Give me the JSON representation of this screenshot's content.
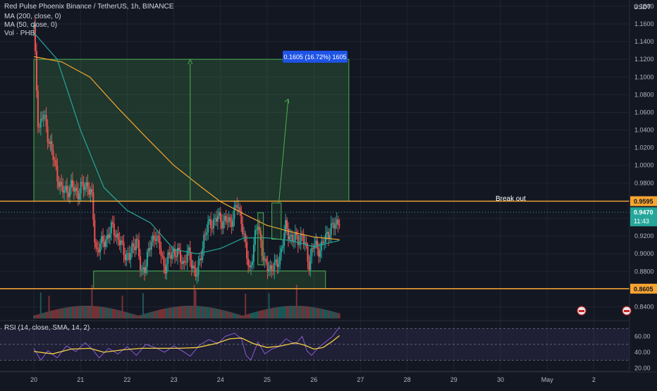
{
  "header": {
    "title": "Red Pulse Phoenix Binance / TetherUS, 1h, BINANCE",
    "ma200": "MA (200, close, 0)",
    "ma50": "MA (50, close, 0)",
    "vol": "Vol · PHB",
    "currency": "USDT"
  },
  "annotations": {
    "measure": "0.1605 (16.72%) 1605",
    "breakout": "Break out"
  },
  "price_badges": {
    "upper_line": "0.9595",
    "last_price": "0.9470",
    "countdown": "11:43",
    "lower_line": "0.8605"
  },
  "rsi_panel": {
    "label": "RSI (14, close, SMA, 14, 2)",
    "ticks": [
      "60.00",
      "40.00",
      "20.00"
    ]
  },
  "colors": {
    "up": "#26a69a",
    "down": "#ef5350",
    "ma200": "#f7a531",
    "ma50": "#26a69a",
    "zone": "#4caf50",
    "rsi": "#7e57c2",
    "rsi_ma": "#f5d142",
    "badge": "#1e53e5"
  },
  "chart_data": {
    "type": "candlestick",
    "x_ticks": [
      "20",
      "21",
      "22",
      "23",
      "24",
      "25",
      "26",
      "27",
      "28",
      "29",
      "30",
      "May",
      "2"
    ],
    "y_ticks": [
      "1.1800",
      "1.1600",
      "1.1400",
      "1.1200",
      "1.1000",
      "1.0800",
      "1.0600",
      "1.0400",
      "1.0200",
      "1.0000",
      "0.9800",
      "0.9600",
      "0.9400",
      "0.9200",
      "0.9000",
      "0.8800",
      "0.8600",
      "0.8400"
    ],
    "ylim": [
      0.834,
      1.1855
    ],
    "price_path": [
      [
        0,
        1.155
      ],
      [
        0.1,
        1.04
      ],
      [
        0.2,
        1.058
      ],
      [
        0.3,
        1.035
      ],
      [
        0.45,
        1.0
      ],
      [
        0.6,
        0.97
      ],
      [
        0.8,
        0.975
      ],
      [
        0.95,
        0.97
      ],
      [
        1.15,
        0.98
      ],
      [
        1.25,
        0.96
      ],
      [
        1.32,
        0.905
      ],
      [
        1.45,
        0.91
      ],
      [
        1.7,
        0.93
      ],
      [
        1.9,
        0.905
      ],
      [
        2.05,
        0.895
      ],
      [
        2.2,
        0.92
      ],
      [
        2.3,
        0.875
      ],
      [
        2.45,
        0.9
      ],
      [
        2.6,
        0.925
      ],
      [
        2.8,
        0.885
      ],
      [
        3.0,
        0.905
      ],
      [
        3.2,
        0.89
      ],
      [
        3.3,
        0.9
      ],
      [
        3.5,
        0.875
      ],
      [
        3.65,
        0.92
      ],
      [
        3.78,
        0.935
      ],
      [
        3.95,
        0.94
      ],
      [
        4.2,
        0.935
      ],
      [
        4.35,
        0.955
      ],
      [
        4.45,
        0.94
      ],
      [
        4.55,
        0.9
      ],
      [
        4.62,
        0.88
      ],
      [
        4.7,
        0.905
      ],
      [
        4.8,
        0.935
      ],
      [
        4.95,
        0.885
      ],
      [
        5.2,
        0.885
      ],
      [
        5.3,
        0.905
      ],
      [
        5.4,
        0.93
      ],
      [
        5.55,
        0.915
      ],
      [
        5.75,
        0.92
      ],
      [
        5.85,
        0.9
      ],
      [
        5.9,
        0.89
      ],
      [
        6.0,
        0.91
      ],
      [
        6.15,
        0.905
      ],
      [
        6.3,
        0.925
      ],
      [
        6.42,
        0.93
      ],
      [
        6.55,
        0.94
      ]
    ],
    "rsi_path": [
      [
        0,
        45
      ],
      [
        0.15,
        30
      ],
      [
        0.3,
        42
      ],
      [
        0.5,
        33
      ],
      [
        0.7,
        48
      ],
      [
        0.9,
        41
      ],
      [
        1.1,
        52
      ],
      [
        1.25,
        44
      ],
      [
        1.4,
        33
      ],
      [
        1.6,
        45
      ],
      [
        1.8,
        38
      ],
      [
        2.0,
        47
      ],
      [
        2.2,
        36
      ],
      [
        2.4,
        50
      ],
      [
        2.6,
        46
      ],
      [
        2.8,
        40
      ],
      [
        3.0,
        48
      ],
      [
        3.2,
        41
      ],
      [
        3.35,
        35
      ],
      [
        3.55,
        49
      ],
      [
        3.75,
        56
      ],
      [
        3.95,
        51
      ],
      [
        4.1,
        60
      ],
      [
        4.3,
        64
      ],
      [
        4.45,
        57
      ],
      [
        4.55,
        36
      ],
      [
        4.65,
        30
      ],
      [
        4.8,
        53
      ],
      [
        4.95,
        38
      ],
      [
        5.1,
        44
      ],
      [
        5.25,
        47
      ],
      [
        5.4,
        57
      ],
      [
        5.6,
        50
      ],
      [
        5.75,
        60
      ],
      [
        5.85,
        42
      ],
      [
        5.95,
        36
      ],
      [
        6.1,
        46
      ],
      [
        6.25,
        53
      ],
      [
        6.4,
        60
      ],
      [
        6.55,
        72
      ]
    ],
    "rsi_ma_path": [
      [
        0,
        41
      ],
      [
        0.4,
        38
      ],
      [
        0.8,
        44
      ],
      [
        1.2,
        45
      ],
      [
        1.5,
        40
      ],
      [
        1.9,
        43
      ],
      [
        2.3,
        45
      ],
      [
        2.7,
        45
      ],
      [
        3.1,
        45
      ],
      [
        3.5,
        46
      ],
      [
        3.9,
        51
      ],
      [
        4.2,
        57
      ],
      [
        4.45,
        58
      ],
      [
        4.7,
        51
      ],
      [
        5.0,
        46
      ],
      [
        5.3,
        48
      ],
      [
        5.6,
        52
      ],
      [
        5.8,
        49
      ],
      [
        6.0,
        44
      ],
      [
        6.2,
        46
      ],
      [
        6.4,
        54
      ],
      [
        6.55,
        61
      ]
    ],
    "rsi_ylim": [
      16,
      80
    ],
    "ma200_path": [
      [
        0,
        1.123
      ],
      [
        0.6,
        1.117
      ],
      [
        1.2,
        1.1
      ],
      [
        1.8,
        1.065
      ],
      [
        2.4,
        1.032
      ],
      [
        3.0,
        1.0
      ],
      [
        3.6,
        0.975
      ],
      [
        4.0,
        0.959
      ],
      [
        4.5,
        0.945
      ],
      [
        5.0,
        0.932
      ],
      [
        5.5,
        0.925
      ],
      [
        6.0,
        0.919
      ],
      [
        6.55,
        0.916
      ]
    ],
    "ma50_path": [
      [
        0,
        1.15
      ],
      [
        0.5,
        1.12
      ],
      [
        1.0,
        1.04
      ],
      [
        1.5,
        0.975
      ],
      [
        2.0,
        0.949
      ],
      [
        2.5,
        0.935
      ],
      [
        3.0,
        0.905
      ],
      [
        3.5,
        0.9
      ],
      [
        4.0,
        0.906
      ],
      [
        4.5,
        0.918
      ],
      [
        5.0,
        0.918
      ],
      [
        5.5,
        0.915
      ],
      [
        6.0,
        0.908
      ],
      [
        6.3,
        0.912
      ],
      [
        6.55,
        0.915
      ]
    ],
    "levels": {
      "upper": 0.9595,
      "lower": 0.8605,
      "last": 0.947,
      "target": 1.12
    },
    "zones": [
      {
        "type": "target",
        "x0": 0,
        "x1": 6.75,
        "y0": 0.9595,
        "y1": 1.12
      },
      {
        "type": "support",
        "x0": 1.28,
        "x1": 6.25,
        "y0": 0.8605,
        "y1": 0.8805
      }
    ],
    "boxes": [
      {
        "x0": 4.8,
        "x1": 4.92,
        "y0": 0.8875,
        "y1": 0.9465
      },
      {
        "x0": 5.1,
        "x1": 5.3,
        "y0": 0.9165,
        "y1": 0.9575
      }
    ],
    "measure_arrow": {
      "x": 3.35,
      "y0": 0.9595,
      "y1": 1.12
    },
    "forecast_arrow": {
      "x0": 5.25,
      "y0": 0.9575,
      "x1": 5.45,
      "y1": 1.075
    }
  }
}
